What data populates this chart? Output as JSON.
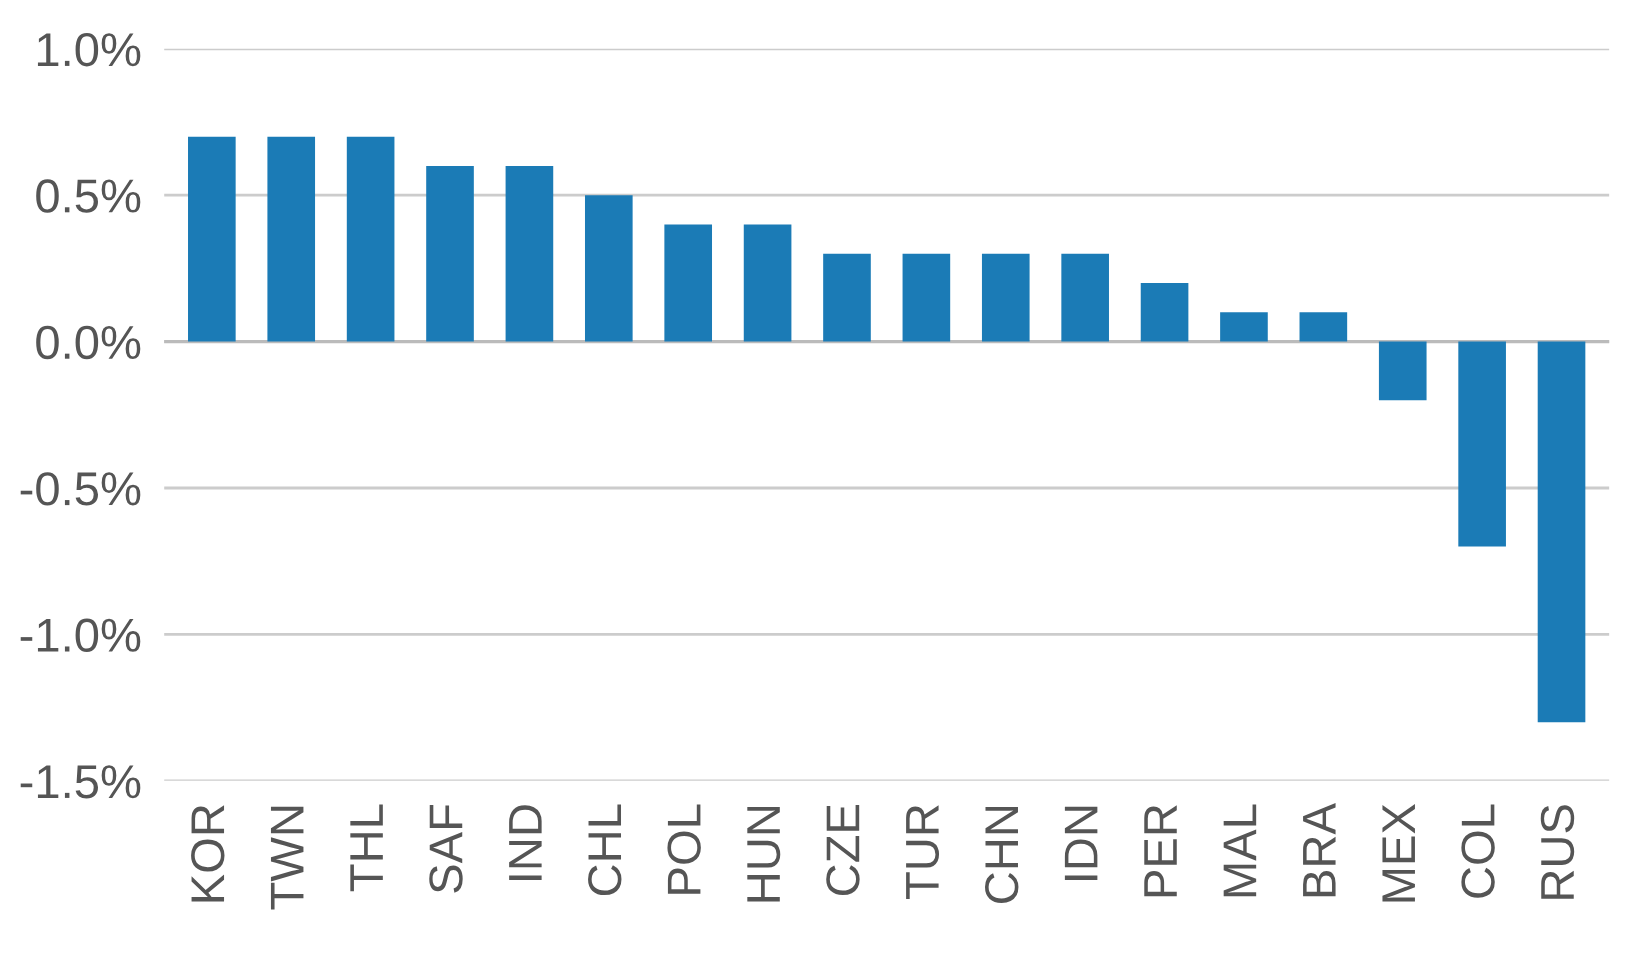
{
  "chart_data": {
    "type": "bar",
    "categories": [
      "KOR",
      "TWN",
      "THL",
      "SAF",
      "IND",
      "CHL",
      "POL",
      "HUN",
      "CZE",
      "TUR",
      "CHN",
      "IDN",
      "PER",
      "MAL",
      "BRA",
      "MEX",
      "COL",
      "RUS"
    ],
    "values": [
      0.7,
      0.7,
      0.7,
      0.6,
      0.6,
      0.5,
      0.4,
      0.4,
      0.3,
      0.3,
      0.3,
      0.3,
      0.2,
      0.1,
      0.1,
      -0.2,
      -0.7,
      -1.3
    ],
    "color": "#1b7bb6",
    "ylim": [
      -1.5,
      1.0
    ],
    "yticks": [
      {
        "value": -1.5,
        "label": "-1.5%"
      },
      {
        "value": -1.0,
        "label": "-1.0%"
      },
      {
        "value": -0.5,
        "label": "-0.5%"
      },
      {
        "value": 0.0,
        "label": "0.0%"
      },
      {
        "value": 0.5,
        "label": "0.5%"
      },
      {
        "value": 1.0,
        "label": "1.0%"
      }
    ],
    "grid": "y"
  }
}
